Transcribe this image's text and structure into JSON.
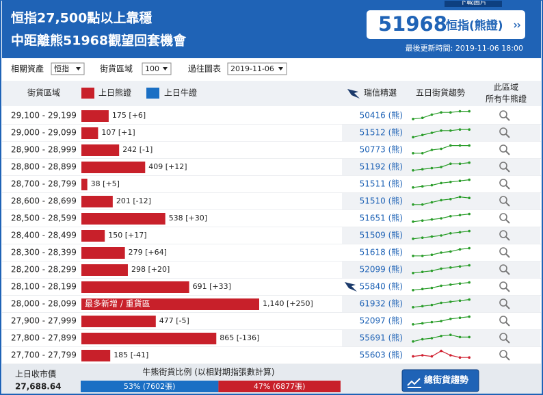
{
  "header": {
    "download": "下載圖片",
    "title_lines": [
      "恒指27,500點以上靠穩",
      "中距離熊51968觀望回套機會"
    ],
    "code": "51968",
    "code_desc": "恒指(熊證)",
    "updated": "最後更新時間: 2019-11-06 18:00"
  },
  "controls": [
    {
      "label": "相關資產",
      "value": "恒指"
    },
    {
      "label": "街貨區域",
      "value": "100"
    },
    {
      "label": "過往圖表",
      "value": "2019-11-06"
    }
  ],
  "columns": {
    "range": "街貨區域",
    "pick": "瑞信精選",
    "trend": "五日街貨趨勢",
    "all": [
      "此區域",
      "所有牛熊證"
    ]
  },
  "chart_data": {
    "type": "bar",
    "orientation": "horizontal",
    "categories": [
      "29,100 - 29,199",
      "29,000 - 29,099",
      "28,900 - 28,999",
      "28,800 - 28,899",
      "28,700 - 28,799",
      "28,600 - 28,699",
      "28,500 - 28,599",
      "28,400 - 28,499",
      "28,300 - 28,399",
      "28,200 - 28,299",
      "28,100 - 28,199",
      "28,000 - 28,099",
      "27,900 - 27,999",
      "27,800 - 27,899",
      "27,700 - 27,799"
    ],
    "series": [
      {
        "name": "上日熊證",
        "color": "#c8202a",
        "values": [
          175,
          107,
          242,
          409,
          38,
          201,
          538,
          150,
          279,
          298,
          691,
          1140,
          477,
          865,
          185
        ],
        "value_labels": [
          "175",
          "107",
          "242",
          "409",
          "38",
          "201",
          "538",
          "150",
          "279",
          "298",
          "691",
          "1,140",
          "477",
          "865",
          "185"
        ],
        "changes": [
          "[+6]",
          "[+1]",
          "[-1]",
          "[+12]",
          "[+5]",
          "[-12]",
          "[+30]",
          "[+17]",
          "[+64]",
          "[+20]",
          "[+33]",
          "[+250]",
          "[-5]",
          "[-136]",
          "[-41]"
        ]
      },
      {
        "name": "上日牛證",
        "color": "#1a6fc4"
      }
    ],
    "annotation": {
      "index": 11,
      "text": "最多新增 / 重貨區"
    }
  },
  "rows": {
    "codes": [
      "50416 (熊)",
      "51512 (熊)",
      "50773 (熊)",
      "51192 (熊)",
      "51511 (熊)",
      "51510 (熊)",
      "51651 (熊)",
      "51509 (熊)",
      "51618 (熊)",
      "52099 (熊)",
      "55840 (熊)",
      "61932 (熊)",
      "52097 (熊)",
      "55691 (熊)",
      "55603 (熊)"
    ],
    "logo_row": 10,
    "trends": [
      [
        2,
        3,
        6,
        8,
        8,
        9,
        9
      ],
      [
        1,
        3,
        5,
        7,
        7,
        8,
        8
      ],
      [
        2,
        2,
        5,
        6,
        9,
        9,
        9
      ],
      [
        2,
        3,
        4,
        5,
        8,
        8,
        9
      ],
      [
        2,
        3,
        4,
        6,
        7,
        8,
        9
      ],
      [
        2,
        2,
        4,
        6,
        7,
        9,
        8
      ],
      [
        2,
        3,
        4,
        5,
        7,
        8,
        9
      ],
      [
        2,
        3,
        4,
        5,
        7,
        8,
        9
      ],
      [
        2,
        2,
        3,
        5,
        6,
        8,
        9
      ],
      [
        2,
        3,
        4,
        6,
        7,
        8,
        9
      ],
      [
        2,
        3,
        4,
        6,
        7,
        8,
        9
      ],
      [
        2,
        3,
        4,
        6,
        7,
        8,
        9
      ],
      [
        2,
        3,
        4,
        5,
        7,
        8,
        9
      ],
      [
        2,
        4,
        5,
        7,
        8,
        6,
        6
      ],
      [
        4,
        5,
        4,
        9,
        5,
        3,
        3
      ]
    ],
    "trend_colors": [
      "#2a9d2a",
      "#2a9d2a",
      "#2a9d2a",
      "#2a9d2a",
      "#2a9d2a",
      "#2a9d2a",
      "#2a9d2a",
      "#2a9d2a",
      "#2a9d2a",
      "#2a9d2a",
      "#2a9d2a",
      "#2a9d2a",
      "#2a9d2a",
      "#2a9d2a",
      "#d02030"
    ]
  },
  "footer": {
    "close_label": "上日收市價",
    "close": "27,688.64",
    "ratio_title": "牛熊街貨比例 (以相對期指張數計算)",
    "ratio": [
      {
        "value": 53,
        "label": "53% (7602張)",
        "color": "#1a6fc4"
      },
      {
        "value": 47,
        "label": "47% (6877張)",
        "color": "#c8202a"
      }
    ],
    "button": "總街貨趨勢"
  }
}
